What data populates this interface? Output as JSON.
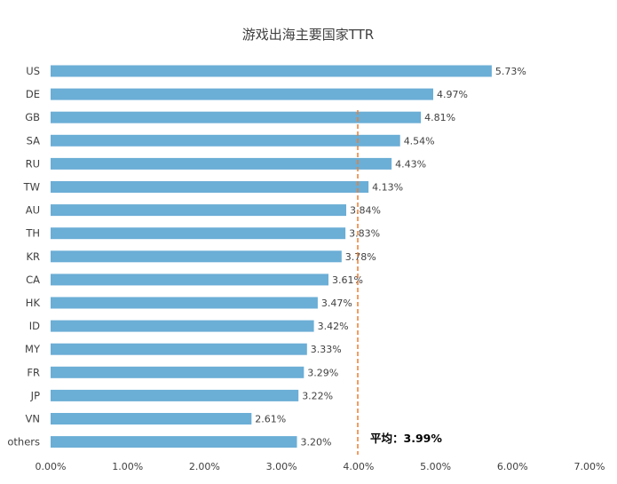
{
  "chart_data": {
    "type": "bar",
    "orientation": "horizontal",
    "title": "游戏出海主要国家TTR",
    "categories": [
      "US",
      "DE",
      "GB",
      "SA",
      "RU",
      "TW",
      "AU",
      "TH",
      "KR",
      "CA",
      "HK",
      "ID",
      "MY",
      "FR",
      "JP",
      "VN",
      "others"
    ],
    "values": [
      5.73,
      4.97,
      4.81,
      4.54,
      4.43,
      4.13,
      3.84,
      3.83,
      3.78,
      3.61,
      3.47,
      3.42,
      3.33,
      3.29,
      3.22,
      2.61,
      3.2
    ],
    "value_labels": [
      "5.73%",
      "4.97%",
      "4.81%",
      "4.54%",
      "4.43%",
      "4.13%",
      "3.84%",
      "3.83%",
      "3.78%",
      "3.61%",
      "3.47%",
      "3.42%",
      "3.33%",
      "3.29%",
      "3.22%",
      "2.61%",
      "3.20%"
    ],
    "xlim": [
      0,
      7
    ],
    "x_ticks": [
      0,
      1,
      2,
      3,
      4,
      5,
      6,
      7
    ],
    "x_tick_labels": [
      "0.00%",
      "1.00%",
      "2.00%",
      "3.00%",
      "4.00%",
      "5.00%",
      "6.00%",
      "7.00%"
    ],
    "reference_line": {
      "value": 3.99,
      "label": "平均：3.99%",
      "color": "#ED7D31",
      "style": "dashed"
    },
    "bar_color": "#6BAED6",
    "grid": false,
    "legend": "none"
  }
}
